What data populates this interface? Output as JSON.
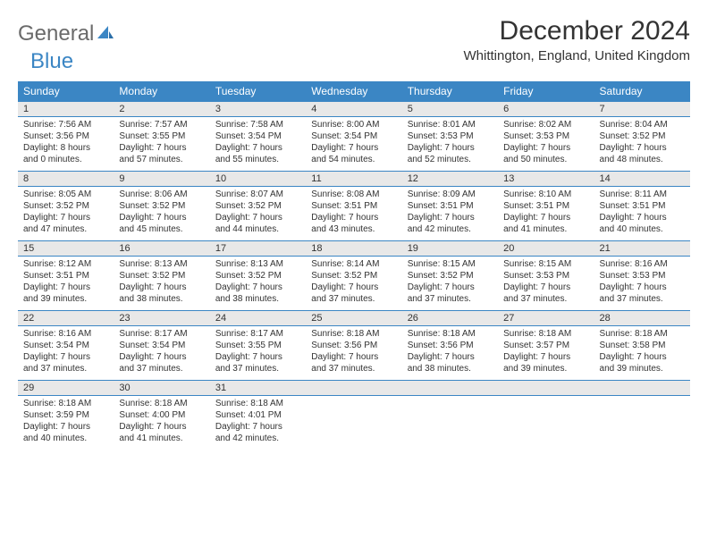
{
  "logo": {
    "part1": "General",
    "part2": "Blue"
  },
  "header": {
    "month_title": "December 2024",
    "location": "Whittington, England, United Kingdom"
  },
  "colors": {
    "brand_blue": "#3b86c4",
    "header_bg": "#3b86c4",
    "date_row_bg": "#e8e8e8",
    "text": "#333333",
    "logo_gray": "#6a6a6a"
  },
  "day_headers": [
    "Sunday",
    "Monday",
    "Tuesday",
    "Wednesday",
    "Thursday",
    "Friday",
    "Saturday"
  ],
  "weeks": [
    {
      "dates": [
        "1",
        "2",
        "3",
        "4",
        "5",
        "6",
        "7"
      ],
      "info": [
        {
          "sunrise": "Sunrise: 7:56 AM",
          "sunset": "Sunset: 3:56 PM",
          "daylight1": "Daylight: 8 hours",
          "daylight2": "and 0 minutes."
        },
        {
          "sunrise": "Sunrise: 7:57 AM",
          "sunset": "Sunset: 3:55 PM",
          "daylight1": "Daylight: 7 hours",
          "daylight2": "and 57 minutes."
        },
        {
          "sunrise": "Sunrise: 7:58 AM",
          "sunset": "Sunset: 3:54 PM",
          "daylight1": "Daylight: 7 hours",
          "daylight2": "and 55 minutes."
        },
        {
          "sunrise": "Sunrise: 8:00 AM",
          "sunset": "Sunset: 3:54 PM",
          "daylight1": "Daylight: 7 hours",
          "daylight2": "and 54 minutes."
        },
        {
          "sunrise": "Sunrise: 8:01 AM",
          "sunset": "Sunset: 3:53 PM",
          "daylight1": "Daylight: 7 hours",
          "daylight2": "and 52 minutes."
        },
        {
          "sunrise": "Sunrise: 8:02 AM",
          "sunset": "Sunset: 3:53 PM",
          "daylight1": "Daylight: 7 hours",
          "daylight2": "and 50 minutes."
        },
        {
          "sunrise": "Sunrise: 8:04 AM",
          "sunset": "Sunset: 3:52 PM",
          "daylight1": "Daylight: 7 hours",
          "daylight2": "and 48 minutes."
        }
      ]
    },
    {
      "dates": [
        "8",
        "9",
        "10",
        "11",
        "12",
        "13",
        "14"
      ],
      "info": [
        {
          "sunrise": "Sunrise: 8:05 AM",
          "sunset": "Sunset: 3:52 PM",
          "daylight1": "Daylight: 7 hours",
          "daylight2": "and 47 minutes."
        },
        {
          "sunrise": "Sunrise: 8:06 AM",
          "sunset": "Sunset: 3:52 PM",
          "daylight1": "Daylight: 7 hours",
          "daylight2": "and 45 minutes."
        },
        {
          "sunrise": "Sunrise: 8:07 AM",
          "sunset": "Sunset: 3:52 PM",
          "daylight1": "Daylight: 7 hours",
          "daylight2": "and 44 minutes."
        },
        {
          "sunrise": "Sunrise: 8:08 AM",
          "sunset": "Sunset: 3:51 PM",
          "daylight1": "Daylight: 7 hours",
          "daylight2": "and 43 minutes."
        },
        {
          "sunrise": "Sunrise: 8:09 AM",
          "sunset": "Sunset: 3:51 PM",
          "daylight1": "Daylight: 7 hours",
          "daylight2": "and 42 minutes."
        },
        {
          "sunrise": "Sunrise: 8:10 AM",
          "sunset": "Sunset: 3:51 PM",
          "daylight1": "Daylight: 7 hours",
          "daylight2": "and 41 minutes."
        },
        {
          "sunrise": "Sunrise: 8:11 AM",
          "sunset": "Sunset: 3:51 PM",
          "daylight1": "Daylight: 7 hours",
          "daylight2": "and 40 minutes."
        }
      ]
    },
    {
      "dates": [
        "15",
        "16",
        "17",
        "18",
        "19",
        "20",
        "21"
      ],
      "info": [
        {
          "sunrise": "Sunrise: 8:12 AM",
          "sunset": "Sunset: 3:51 PM",
          "daylight1": "Daylight: 7 hours",
          "daylight2": "and 39 minutes."
        },
        {
          "sunrise": "Sunrise: 8:13 AM",
          "sunset": "Sunset: 3:52 PM",
          "daylight1": "Daylight: 7 hours",
          "daylight2": "and 38 minutes."
        },
        {
          "sunrise": "Sunrise: 8:13 AM",
          "sunset": "Sunset: 3:52 PM",
          "daylight1": "Daylight: 7 hours",
          "daylight2": "and 38 minutes."
        },
        {
          "sunrise": "Sunrise: 8:14 AM",
          "sunset": "Sunset: 3:52 PM",
          "daylight1": "Daylight: 7 hours",
          "daylight2": "and 37 minutes."
        },
        {
          "sunrise": "Sunrise: 8:15 AM",
          "sunset": "Sunset: 3:52 PM",
          "daylight1": "Daylight: 7 hours",
          "daylight2": "and 37 minutes."
        },
        {
          "sunrise": "Sunrise: 8:15 AM",
          "sunset": "Sunset: 3:53 PM",
          "daylight1": "Daylight: 7 hours",
          "daylight2": "and 37 minutes."
        },
        {
          "sunrise": "Sunrise: 8:16 AM",
          "sunset": "Sunset: 3:53 PM",
          "daylight1": "Daylight: 7 hours",
          "daylight2": "and 37 minutes."
        }
      ]
    },
    {
      "dates": [
        "22",
        "23",
        "24",
        "25",
        "26",
        "27",
        "28"
      ],
      "info": [
        {
          "sunrise": "Sunrise: 8:16 AM",
          "sunset": "Sunset: 3:54 PM",
          "daylight1": "Daylight: 7 hours",
          "daylight2": "and 37 minutes."
        },
        {
          "sunrise": "Sunrise: 8:17 AM",
          "sunset": "Sunset: 3:54 PM",
          "daylight1": "Daylight: 7 hours",
          "daylight2": "and 37 minutes."
        },
        {
          "sunrise": "Sunrise: 8:17 AM",
          "sunset": "Sunset: 3:55 PM",
          "daylight1": "Daylight: 7 hours",
          "daylight2": "and 37 minutes."
        },
        {
          "sunrise": "Sunrise: 8:18 AM",
          "sunset": "Sunset: 3:56 PM",
          "daylight1": "Daylight: 7 hours",
          "daylight2": "and 37 minutes."
        },
        {
          "sunrise": "Sunrise: 8:18 AM",
          "sunset": "Sunset: 3:56 PM",
          "daylight1": "Daylight: 7 hours",
          "daylight2": "and 38 minutes."
        },
        {
          "sunrise": "Sunrise: 8:18 AM",
          "sunset": "Sunset: 3:57 PM",
          "daylight1": "Daylight: 7 hours",
          "daylight2": "and 39 minutes."
        },
        {
          "sunrise": "Sunrise: 8:18 AM",
          "sunset": "Sunset: 3:58 PM",
          "daylight1": "Daylight: 7 hours",
          "daylight2": "and 39 minutes."
        }
      ]
    },
    {
      "dates": [
        "29",
        "30",
        "31",
        "",
        "",
        "",
        ""
      ],
      "info": [
        {
          "sunrise": "Sunrise: 8:18 AM",
          "sunset": "Sunset: 3:59 PM",
          "daylight1": "Daylight: 7 hours",
          "daylight2": "and 40 minutes."
        },
        {
          "sunrise": "Sunrise: 8:18 AM",
          "sunset": "Sunset: 4:00 PM",
          "daylight1": "Daylight: 7 hours",
          "daylight2": "and 41 minutes."
        },
        {
          "sunrise": "Sunrise: 8:18 AM",
          "sunset": "Sunset: 4:01 PM",
          "daylight1": "Daylight: 7 hours",
          "daylight2": "and 42 minutes."
        },
        null,
        null,
        null,
        null
      ]
    }
  ]
}
